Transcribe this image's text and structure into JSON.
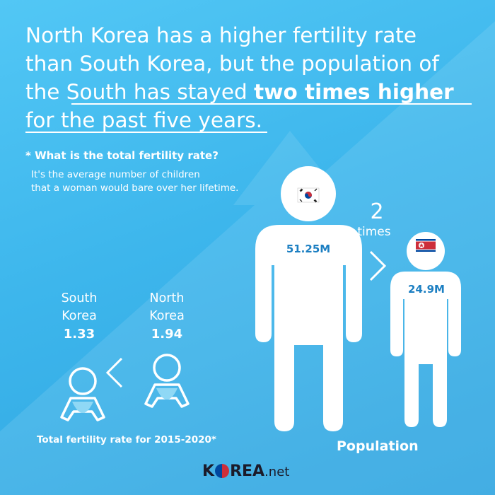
{
  "headline": {
    "line1": "North Korea has a higher fertility rate",
    "line2": "than South Korea, but the population of",
    "line3_normal": "the South has stayed ",
    "line3_bold": "two times higher",
    "line4": "for the past five years."
  },
  "definition": {
    "title": "* What is the total fertility rate?",
    "body_line1": "It's the average number of children",
    "body_line2": "that a woman would bare over her lifetime."
  },
  "fertility": {
    "south": {
      "name_line1": "South",
      "name_line2": "Korea",
      "rate": "1.33"
    },
    "north": {
      "name_line1": "North",
      "name_line2": "Korea",
      "rate": "1.94"
    },
    "footer": "Total fertility rate for 2015-2020*"
  },
  "population": {
    "south_value": "51.25M",
    "north_value": "24.9M",
    "ratio_number": "2",
    "ratio_word": "times",
    "footer": "Population"
  },
  "logo": {
    "part1": "K",
    "part2": "REA",
    "part3": ".net"
  },
  "colors": {
    "background": "#3db6ec",
    "figure": "#ffffff",
    "value_text": "#1c7fc2",
    "korea_red": "#cd2e3a",
    "korea_blue": "#0047a0"
  }
}
